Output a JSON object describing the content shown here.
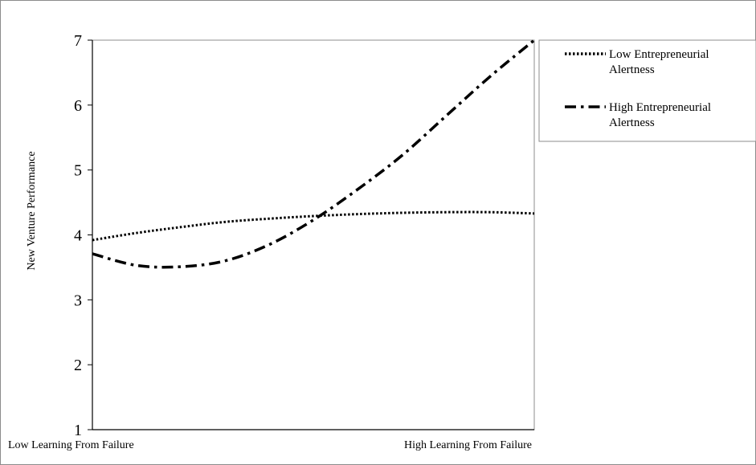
{
  "chart_data": {
    "type": "line",
    "title": "",
    "ylabel": "New Venture Performance",
    "xlabel": "",
    "ylim": [
      1,
      7
    ],
    "yticks": [
      1,
      2,
      3,
      4,
      5,
      6,
      7
    ],
    "xlim": [
      0,
      1
    ],
    "x_category_labels": [
      "Low  Learning From Failure",
      "High  Learning From Failure"
    ],
    "grid": false,
    "legend_position": "right",
    "series": [
      {
        "name": "Low Entrepreneurial Alertness",
        "style": "dotted",
        "color": "#000000",
        "x": [
          0,
          0.1,
          0.2,
          0.3,
          0.4,
          0.5,
          0.6,
          0.7,
          0.8,
          0.9,
          1.0
        ],
        "y": [
          3.92,
          4.03,
          4.12,
          4.2,
          4.25,
          4.29,
          4.32,
          4.34,
          4.35,
          4.35,
          4.33
        ]
      },
      {
        "name": "High Entrepreneurial Alertness",
        "style": "dash-dot",
        "color": "#000000",
        "x": [
          0,
          0.1,
          0.2,
          0.3,
          0.4,
          0.5,
          0.6,
          0.7,
          0.8,
          0.9,
          1.0
        ],
        "y": [
          3.71,
          3.53,
          3.51,
          3.6,
          3.85,
          4.23,
          4.7,
          5.22,
          5.83,
          6.44,
          7.0
        ]
      }
    ]
  }
}
